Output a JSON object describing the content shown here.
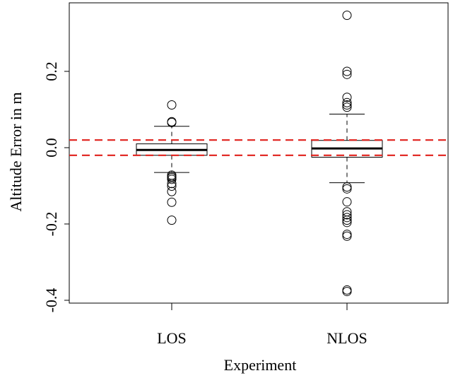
{
  "chart_data": {
    "type": "boxplot",
    "title": "",
    "xlabel": "Experiment",
    "ylabel": "Altitude Error in m",
    "ylim": [
      -0.41,
      0.37
    ],
    "y_ticks": [
      -0.4,
      -0.2,
      0.0,
      0.2
    ],
    "y_tick_labels": [
      "-0.4",
      "-0.2",
      "0.0",
      "0.2"
    ],
    "categories": [
      "LOS",
      "NLOS"
    ],
    "boxes": [
      {
        "category": "LOS",
        "q1": -0.02,
        "median": -0.006,
        "q3": 0.01,
        "whisker_low": -0.065,
        "whisker_high": 0.056,
        "outliers": [
          0.112,
          0.068,
          0.066,
          -0.072,
          -0.076,
          -0.079,
          -0.083,
          -0.094,
          -0.101,
          -0.115,
          -0.143,
          -0.19
        ]
      },
      {
        "category": "NLOS",
        "q1": -0.025,
        "median": -0.002,
        "q3": 0.019,
        "whisker_low": -0.092,
        "whisker_high": 0.088,
        "outliers": [
          0.347,
          0.2,
          0.192,
          0.132,
          0.118,
          0.112,
          0.106,
          -0.103,
          -0.108,
          -0.142,
          -0.168,
          -0.176,
          -0.183,
          -0.19,
          -0.196,
          -0.227,
          -0.232,
          -0.373,
          -0.377
        ]
      }
    ],
    "reference_lines": [
      {
        "y": 0.02,
        "style": "dashed",
        "color": "#e0201b"
      },
      {
        "y": -0.02,
        "style": "dashed",
        "color": "#e0201b"
      }
    ],
    "grid": false,
    "legend": "none"
  }
}
